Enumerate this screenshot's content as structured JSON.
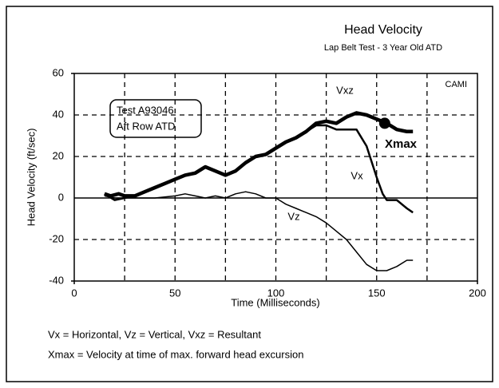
{
  "chart_data": {
    "type": "line",
    "title": "Head Velocity",
    "subtitle": "Lap Belt Test - 3 Year Old ATD",
    "x_label": "Time (Milliseconds)",
    "y_label": "Head Velocity (ft/sec)",
    "xlim": [
      0,
      200
    ],
    "ylim": [
      -40,
      60
    ],
    "xticks": [
      0,
      50,
      100,
      150,
      200
    ],
    "yticks": [
      -40,
      -20,
      0,
      20,
      40,
      60
    ],
    "x_minor_ticks": [
      25,
      75,
      125,
      175
    ],
    "grid": true,
    "series": [
      {
        "name": "Vxz",
        "color": "#000000",
        "x": [
          15,
          18,
          22,
          25,
          30,
          35,
          40,
          45,
          50,
          55,
          60,
          65,
          70,
          75,
          80,
          85,
          90,
          95,
          100,
          105,
          110,
          115,
          120,
          125,
          130,
          135,
          140,
          145,
          150,
          155,
          160,
          165,
          168
        ],
        "values": [
          2,
          1,
          2,
          1,
          1,
          3,
          5,
          7,
          9,
          11,
          12,
          15,
          13,
          11,
          13,
          17,
          20,
          21,
          24,
          27,
          29,
          32,
          36,
          37,
          36,
          39,
          41,
          40,
          38,
          36,
          33,
          32,
          32
        ]
      },
      {
        "name": "Vx",
        "color": "#000000",
        "x": [
          15,
          20,
          25,
          30,
          35,
          40,
          45,
          50,
          55,
          60,
          65,
          70,
          75,
          80,
          85,
          90,
          95,
          100,
          105,
          110,
          115,
          120,
          125,
          130,
          135,
          140,
          145,
          150,
          153,
          155,
          160,
          165,
          168
        ],
        "values": [
          2,
          -1,
          0,
          1,
          3,
          5,
          7,
          9,
          11,
          12,
          15,
          13,
          11,
          13,
          17,
          20,
          21,
          24,
          27,
          29,
          32,
          35,
          35,
          33,
          33,
          33,
          25,
          10,
          2,
          -1,
          -1,
          -5,
          -7
        ]
      },
      {
        "name": "Vz",
        "color": "#000000",
        "x": [
          15,
          20,
          25,
          30,
          40,
          50,
          55,
          60,
          65,
          70,
          75,
          80,
          85,
          90,
          95,
          100,
          105,
          110,
          115,
          120,
          125,
          130,
          135,
          140,
          145,
          150,
          155,
          160,
          165,
          168
        ],
        "values": [
          1,
          0,
          0,
          0,
          0,
          1,
          2,
          1,
          0,
          1,
          0,
          2,
          3,
          2,
          0,
          0,
          -3,
          -5,
          -7,
          -9,
          -12,
          -16,
          -20,
          -26,
          -32,
          -35,
          -35,
          -33,
          -30,
          -30
        ]
      }
    ],
    "xmax_point": {
      "label": "Xmax",
      "x": 154,
      "value": 36
    },
    "source_label": "CAMI",
    "test_box": [
      "Test A93046",
      "Aft Row ATD"
    ],
    "notes": [
      "Vx = Horizontal, Vz = Vertical, Vxz = Resultant",
      "Xmax = Velocity at time of max. forward head excursion"
    ]
  }
}
